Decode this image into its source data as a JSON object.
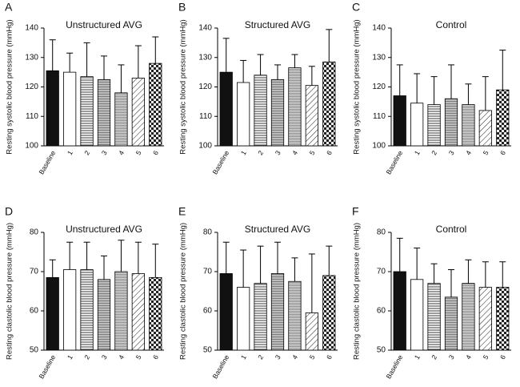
{
  "chart_data": [
    {
      "type": "bar",
      "panel": "A",
      "title": "Unstructured AVG",
      "ylabel": "Resting systolic blood pressure (mmHg)",
      "categories": [
        "Baseline",
        "1",
        "2",
        "3",
        "4",
        "5",
        "6"
      ],
      "values": [
        125.5,
        125,
        123.5,
        122.5,
        118,
        123,
        128
      ],
      "errors": [
        10.5,
        6.5,
        11.5,
        8,
        9.5,
        11,
        9
      ],
      "ylim": [
        100,
        140
      ],
      "yticks": [
        100,
        110,
        120,
        130,
        140
      ]
    },
    {
      "type": "bar",
      "panel": "B",
      "title": "Structured AVG",
      "ylabel": "Resting systolic blood pressure (mmHg)",
      "categories": [
        "Baseline",
        "1",
        "2",
        "3",
        "4",
        "5",
        "6"
      ],
      "values": [
        125,
        121.5,
        124,
        122.5,
        126.5,
        120.5,
        128.5
      ],
      "errors": [
        11.5,
        7.5,
        7,
        5,
        4.5,
        6.5,
        11
      ],
      "ylim": [
        100,
        140
      ],
      "yticks": [
        100,
        110,
        120,
        130,
        140
      ]
    },
    {
      "type": "bar",
      "panel": "C",
      "title": "Control",
      "ylabel": "Resting systolic blood pressure (mmHg)",
      "categories": [
        "Baseline",
        "1",
        "2",
        "3",
        "4",
        "5",
        "6"
      ],
      "values": [
        117,
        114.5,
        114,
        116,
        114,
        112,
        119
      ],
      "errors": [
        10.5,
        10,
        9.5,
        11.5,
        7,
        11.5,
        13.5
      ],
      "ylim": [
        100,
        140
      ],
      "yticks": [
        100,
        110,
        120,
        130,
        140
      ]
    },
    {
      "type": "bar",
      "panel": "D",
      "title": "Unstructured AVG",
      "ylabel": "Resting clastolic blood pressure (mmHg)",
      "categories": [
        "Baseline",
        "1",
        "2",
        "3",
        "4",
        "5",
        "6"
      ],
      "values": [
        68.5,
        70.5,
        70.5,
        68,
        70,
        69.5,
        68.5
      ],
      "errors": [
        4.5,
        7,
        7,
        6,
        8,
        8,
        8.5
      ],
      "ylim": [
        50,
        80
      ],
      "yticks": [
        50,
        60,
        70,
        80
      ]
    },
    {
      "type": "bar",
      "panel": "E",
      "title": "Structured AVG",
      "ylabel": "Resting clastolic blood pressure (mmHg)",
      "categories": [
        "Baseline",
        "1",
        "2",
        "3",
        "4",
        "5",
        "6"
      ],
      "values": [
        69.5,
        66,
        67,
        69.5,
        67.5,
        59.5,
        69
      ],
      "errors": [
        8,
        9.5,
        9.5,
        8,
        6,
        15,
        7.5
      ],
      "ylim": [
        50,
        80
      ],
      "yticks": [
        50,
        60,
        70,
        80
      ]
    },
    {
      "type": "bar",
      "panel": "F",
      "title": "Control",
      "ylabel": "Resting clastolic blood pressure (mmHg)",
      "categories": [
        "Baseline",
        "1",
        "2",
        "3",
        "4",
        "5",
        "6"
      ],
      "values": [
        70,
        68,
        67,
        63.5,
        67,
        66,
        66
      ],
      "errors": [
        8.5,
        8,
        5,
        7,
        6,
        6.5,
        6.5
      ],
      "ylim": [
        50,
        80
      ],
      "yticks": [
        50,
        60,
        70,
        80
      ]
    }
  ]
}
